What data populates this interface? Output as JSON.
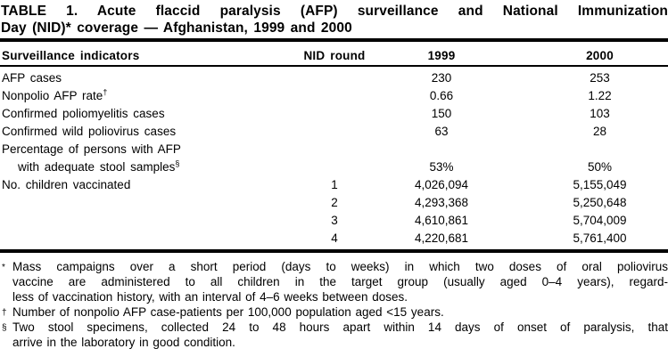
{
  "title": {
    "line1": "TABLE 1. Acute flaccid paralysis (AFP) surveillance and National Immunization",
    "line2": "Day (NID)* coverage — Afghanistan, 1999 and 2000"
  },
  "table": {
    "columns": [
      "Surveillance indicators",
      "NID round",
      "1999",
      "2000"
    ],
    "rows": [
      {
        "indicator": "AFP cases",
        "nid_round": "",
        "v1999": "230",
        "v2000": "253"
      },
      {
        "indicator": "Nonpolio AFP rate",
        "sup": "†",
        "nid_round": "",
        "v1999": "0.66",
        "v2000": "1.22"
      },
      {
        "indicator": "Confirmed poliomyelitis cases",
        "nid_round": "",
        "v1999": "150",
        "v2000": "103"
      },
      {
        "indicator": "Confirmed wild poliovirus cases",
        "nid_round": "",
        "v1999": "63",
        "v2000": "28"
      },
      {
        "indicator": "Percentage of persons with AFP",
        "nid_round": "",
        "v1999": "",
        "v2000": ""
      },
      {
        "indicator": "with adequate stool samples",
        "sup": "§",
        "nid_round": "",
        "v1999": "53%",
        "v2000": "50%"
      },
      {
        "indicator": "No. children vaccinated",
        "nid_round": "1",
        "v1999": "4,026,094",
        "v2000": "5,155,049"
      },
      {
        "indicator": "",
        "nid_round": "2",
        "v1999": "4,293,368",
        "v2000": "5,250,648"
      },
      {
        "indicator": "",
        "nid_round": "3",
        "v1999": "4,610,861",
        "v2000": "5,704,009"
      },
      {
        "indicator": "",
        "nid_round": "4",
        "v1999": "4,220,681",
        "v2000": "5,761,400"
      }
    ]
  },
  "footnotes": [
    {
      "marker": "*",
      "line1": "Mass campaigns over a short period (days to weeks) in which two doses of oral poliovirus",
      "line2": "vaccine are administered to all children in the target group (usually aged 0–4 years), regard-",
      "line3": "less of vaccination history, with an interval of 4–6 weeks between doses."
    },
    {
      "marker": "†",
      "line1": "Number of nonpolio AFP case-patients per 100,000 population aged <15 years."
    },
    {
      "marker": "§",
      "line1": "Two stool specimens, collected 24 to 48 hours apart within 14 days of onset of paralysis, that",
      "line2": "arrive in the laboratory in good condition."
    }
  ]
}
